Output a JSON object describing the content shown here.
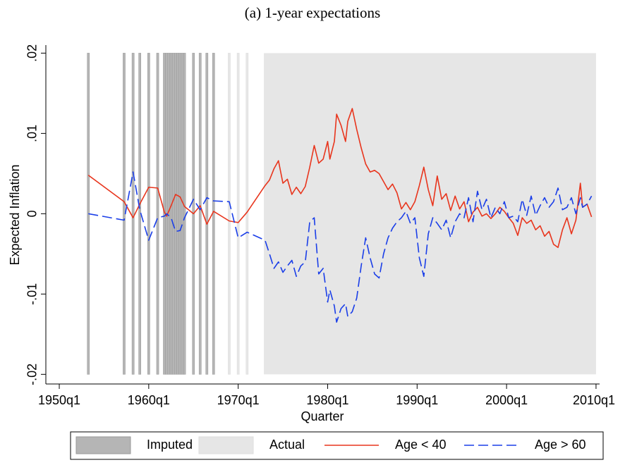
{
  "chart_data": {
    "type": "line",
    "title": "(a) 1-year expectations",
    "x_label": "Quarter",
    "y_label": "Expected Inflation",
    "xlim": [
      1948.5,
      2010.4
    ],
    "xticks": [
      {
        "value": 1950,
        "label": "1950q1"
      },
      {
        "value": 1960,
        "label": "1960q1"
      },
      {
        "value": 1970,
        "label": "1970q1"
      },
      {
        "value": 1980,
        "label": "1980q1"
      },
      {
        "value": 1990,
        "label": "1990q1"
      },
      {
        "value": 2000,
        "label": "2000q1"
      },
      {
        "value": 2010,
        "label": "2010q1"
      }
    ],
    "ylim": [
      -0.0212,
      0.021
    ],
    "yticks": [
      {
        "value": -0.02,
        "label": "-.02"
      },
      {
        "value": -0.01,
        "label": "-.01"
      },
      0,
      {
        "value": 0.01,
        "label": ".01"
      },
      {
        "value": 0.02,
        "label": ".02"
      }
    ],
    "shading": [
      {
        "name": "Imputed",
        "color": "#b5b5b5",
        "x": [
          1953.25,
          1957.25,
          1958.25,
          1959,
          1960,
          1961,
          1961.75,
          1962,
          1962.25,
          1962.5,
          1962.75,
          1963,
          1963.25,
          1963.5,
          1963.75,
          1964,
          1965,
          1965.75,
          1966.5,
          1967.25
        ]
      },
      {
        "name": "Actual",
        "color": "#e6e6e6",
        "x": [
          1969,
          1970,
          1971
        ],
        "span": [
          1973,
          2010
        ]
      }
    ],
    "x": [
      1953.25,
      1957.25,
      1958.25,
      1959,
      1960,
      1961,
      1961.75,
      1962,
      1962.5,
      1963,
      1963.5,
      1964,
      1965,
      1965.75,
      1966.5,
      1967.25,
      1969,
      1970,
      1971,
      1973,
      1973.5,
      1974,
      1974.5,
      1975,
      1975.5,
      1976,
      1976.5,
      1977,
      1977.5,
      1978,
      1978.5,
      1979,
      1979.5,
      1980,
      1980.25,
      1980.75,
      1981,
      1981.5,
      1982,
      1982.25,
      1982.75,
      1983.25,
      1983.75,
      1984.25,
      1984.75,
      1985.25,
      1985.75,
      1986.25,
      1986.75,
      1987.25,
      1987.75,
      1988.25,
      1988.75,
      1989.25,
      1989.75,
      1990.25,
      1990.75,
      1991.25,
      1991.75,
      1992.25,
      1992.75,
      1993.25,
      1993.75,
      1994.25,
      1994.75,
      1995.25,
      1995.75,
      1996.25,
      1996.75,
      1997.25,
      1997.75,
      1998.25,
      1998.75,
      1999.25,
      1999.75,
      2000.25,
      2000.75,
      2001.25,
      2001.75,
      2002.25,
      2002.75,
      2003.25,
      2003.75,
      2004.25,
      2004.75,
      2005.25,
      2005.75,
      2006.25,
      2006.75,
      2007.25,
      2007.75,
      2008.25,
      2008.5,
      2009,
      2009.5
    ],
    "series": [
      {
        "name": "Age < 40",
        "color": "#e8351d",
        "dash": "none",
        "values": [
          0.0048,
          0.0015,
          -0.0005,
          0.0012,
          0.0033,
          0.0032,
          0.0002,
          -0.0003,
          0.001,
          0.0024,
          0.0021,
          0.0009,
          0,
          0.001,
          -0.0013,
          0.0003,
          -0.0009,
          -0.0011,
          0.0002,
          0.0035,
          0.0042,
          0.0056,
          0.0066,
          0.0038,
          0.0043,
          0.0024,
          0.0033,
          0.0025,
          0.0034,
          0.0058,
          0.0085,
          0.0063,
          0.0068,
          0.009,
          0.0068,
          0.009,
          0.0124,
          0.011,
          0.009,
          0.0115,
          0.0131,
          0.0105,
          0.0082,
          0.0062,
          0.0052,
          0.0054,
          0.005,
          0.004,
          0.003,
          0.0037,
          0.0026,
          0.0006,
          0.0014,
          0.0005,
          0.0015,
          0.0035,
          0.0058,
          0.003,
          0.001,
          0.0047,
          0.0018,
          0.0025,
          0.0004,
          0.0022,
          0.0006,
          0.0015,
          -0.001,
          0.0002,
          0.0008,
          -0.0003,
          0,
          -0.0006,
          0,
          0.0008,
          0.0003,
          -0.0005,
          -0.0012,
          -0.0027,
          -0.0005,
          -0.0012,
          -0.0008,
          -0.002,
          -0.0015,
          -0.0028,
          -0.0022,
          -0.0038,
          -0.0042,
          -0.002,
          -0.0005,
          -0.0025,
          -0.0008,
          0.0038,
          0.0008,
          0.0012,
          -0.0004
        ]
      },
      {
        "name": "Age > 60",
        "color": "#1a3ee8",
        "dash": "14 6",
        "values": [
          0,
          -0.0008,
          0.0052,
          0.0005,
          -0.0033,
          -0.0005,
          -0.0003,
          0,
          -0.0005,
          -0.0022,
          -0.0021,
          -0.0005,
          0.0018,
          0.0005,
          0.002,
          0.0016,
          0.0015,
          -0.003,
          -0.0023,
          -0.0033,
          -0.005,
          -0.0068,
          -0.006,
          -0.0073,
          -0.0065,
          -0.0058,
          -0.0078,
          -0.0065,
          -0.006,
          -0.001,
          -0.0005,
          -0.0075,
          -0.0068,
          -0.011,
          -0.0095,
          -0.0115,
          -0.0135,
          -0.0118,
          -0.0112,
          -0.0128,
          -0.0122,
          -0.0105,
          -0.0065,
          -0.003,
          -0.0055,
          -0.0075,
          -0.008,
          -0.005,
          -0.003,
          -0.0018,
          -0.001,
          -0.0005,
          0.0003,
          -0.0012,
          -0.0005,
          -0.0055,
          -0.0078,
          -0.0025,
          -0.0005,
          -0.0012,
          -0.002,
          -0.0008,
          -0.003,
          -0.001,
          0,
          -0.0005,
          0.002,
          -0.001,
          0.0028,
          0.0005,
          0.0018,
          -0.0005,
          0.0008,
          0,
          0.0015,
          -0.0005,
          -0.0003,
          -0.001,
          0.0018,
          -0.0002,
          0.0022,
          -0.0002,
          0.001,
          0.002,
          0.0008,
          0.0015,
          0.0032,
          0.0005,
          0.0008,
          0.002,
          0,
          0.002,
          0.0008,
          0.0012,
          0.0022
        ]
      }
    ]
  }
}
